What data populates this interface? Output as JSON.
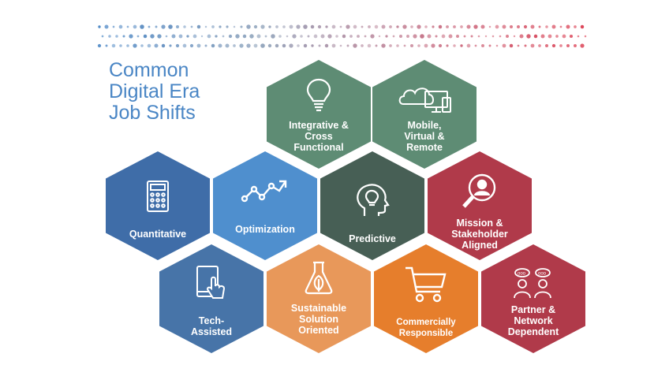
{
  "title": {
    "line1": "Common",
    "line2": "Digital Era",
    "line3": "Job Shifts"
  },
  "colors": {
    "green_gray": "#5e8c74",
    "dark_green": "#475f55",
    "blue": "#3f6da8",
    "light_blue": "#4f8fce",
    "steel_blue": "#4774a8",
    "red": "#b03a4a",
    "orange": "#e67e2c",
    "light_orange": "#e8985a",
    "title": "#4a86c5"
  },
  "hexes": {
    "integrative": {
      "label": "Integrative &\nCross\nFunctional",
      "icon": "lightbulb-icon"
    },
    "mobile": {
      "label": "Mobile,\nVirtual &\nRemote",
      "icon": "cloud-devices-icon"
    },
    "quantitative": {
      "label": "Quantitative",
      "icon": "calculator-icon"
    },
    "optimization": {
      "label": "Optimization",
      "icon": "trend-arrow-icon"
    },
    "predictive": {
      "label": "Predictive",
      "icon": "head-lightbulb-icon"
    },
    "mission": {
      "label": "Mission &\nStakeholder\nAligned",
      "icon": "magnifier-person-icon"
    },
    "tech": {
      "label": "Tech-\nAssisted",
      "icon": "tablet-hand-icon"
    },
    "sustainable": {
      "label": "Sustainable\nSolution\nOriented",
      "icon": "flask-leaf-icon"
    },
    "commercially": {
      "label": "Commercially\nResponsible",
      "icon": "shopping-cart-icon"
    },
    "partner": {
      "label": "Partner &\nNetwork\nDependent",
      "icon": "people-chat-icon"
    }
  }
}
